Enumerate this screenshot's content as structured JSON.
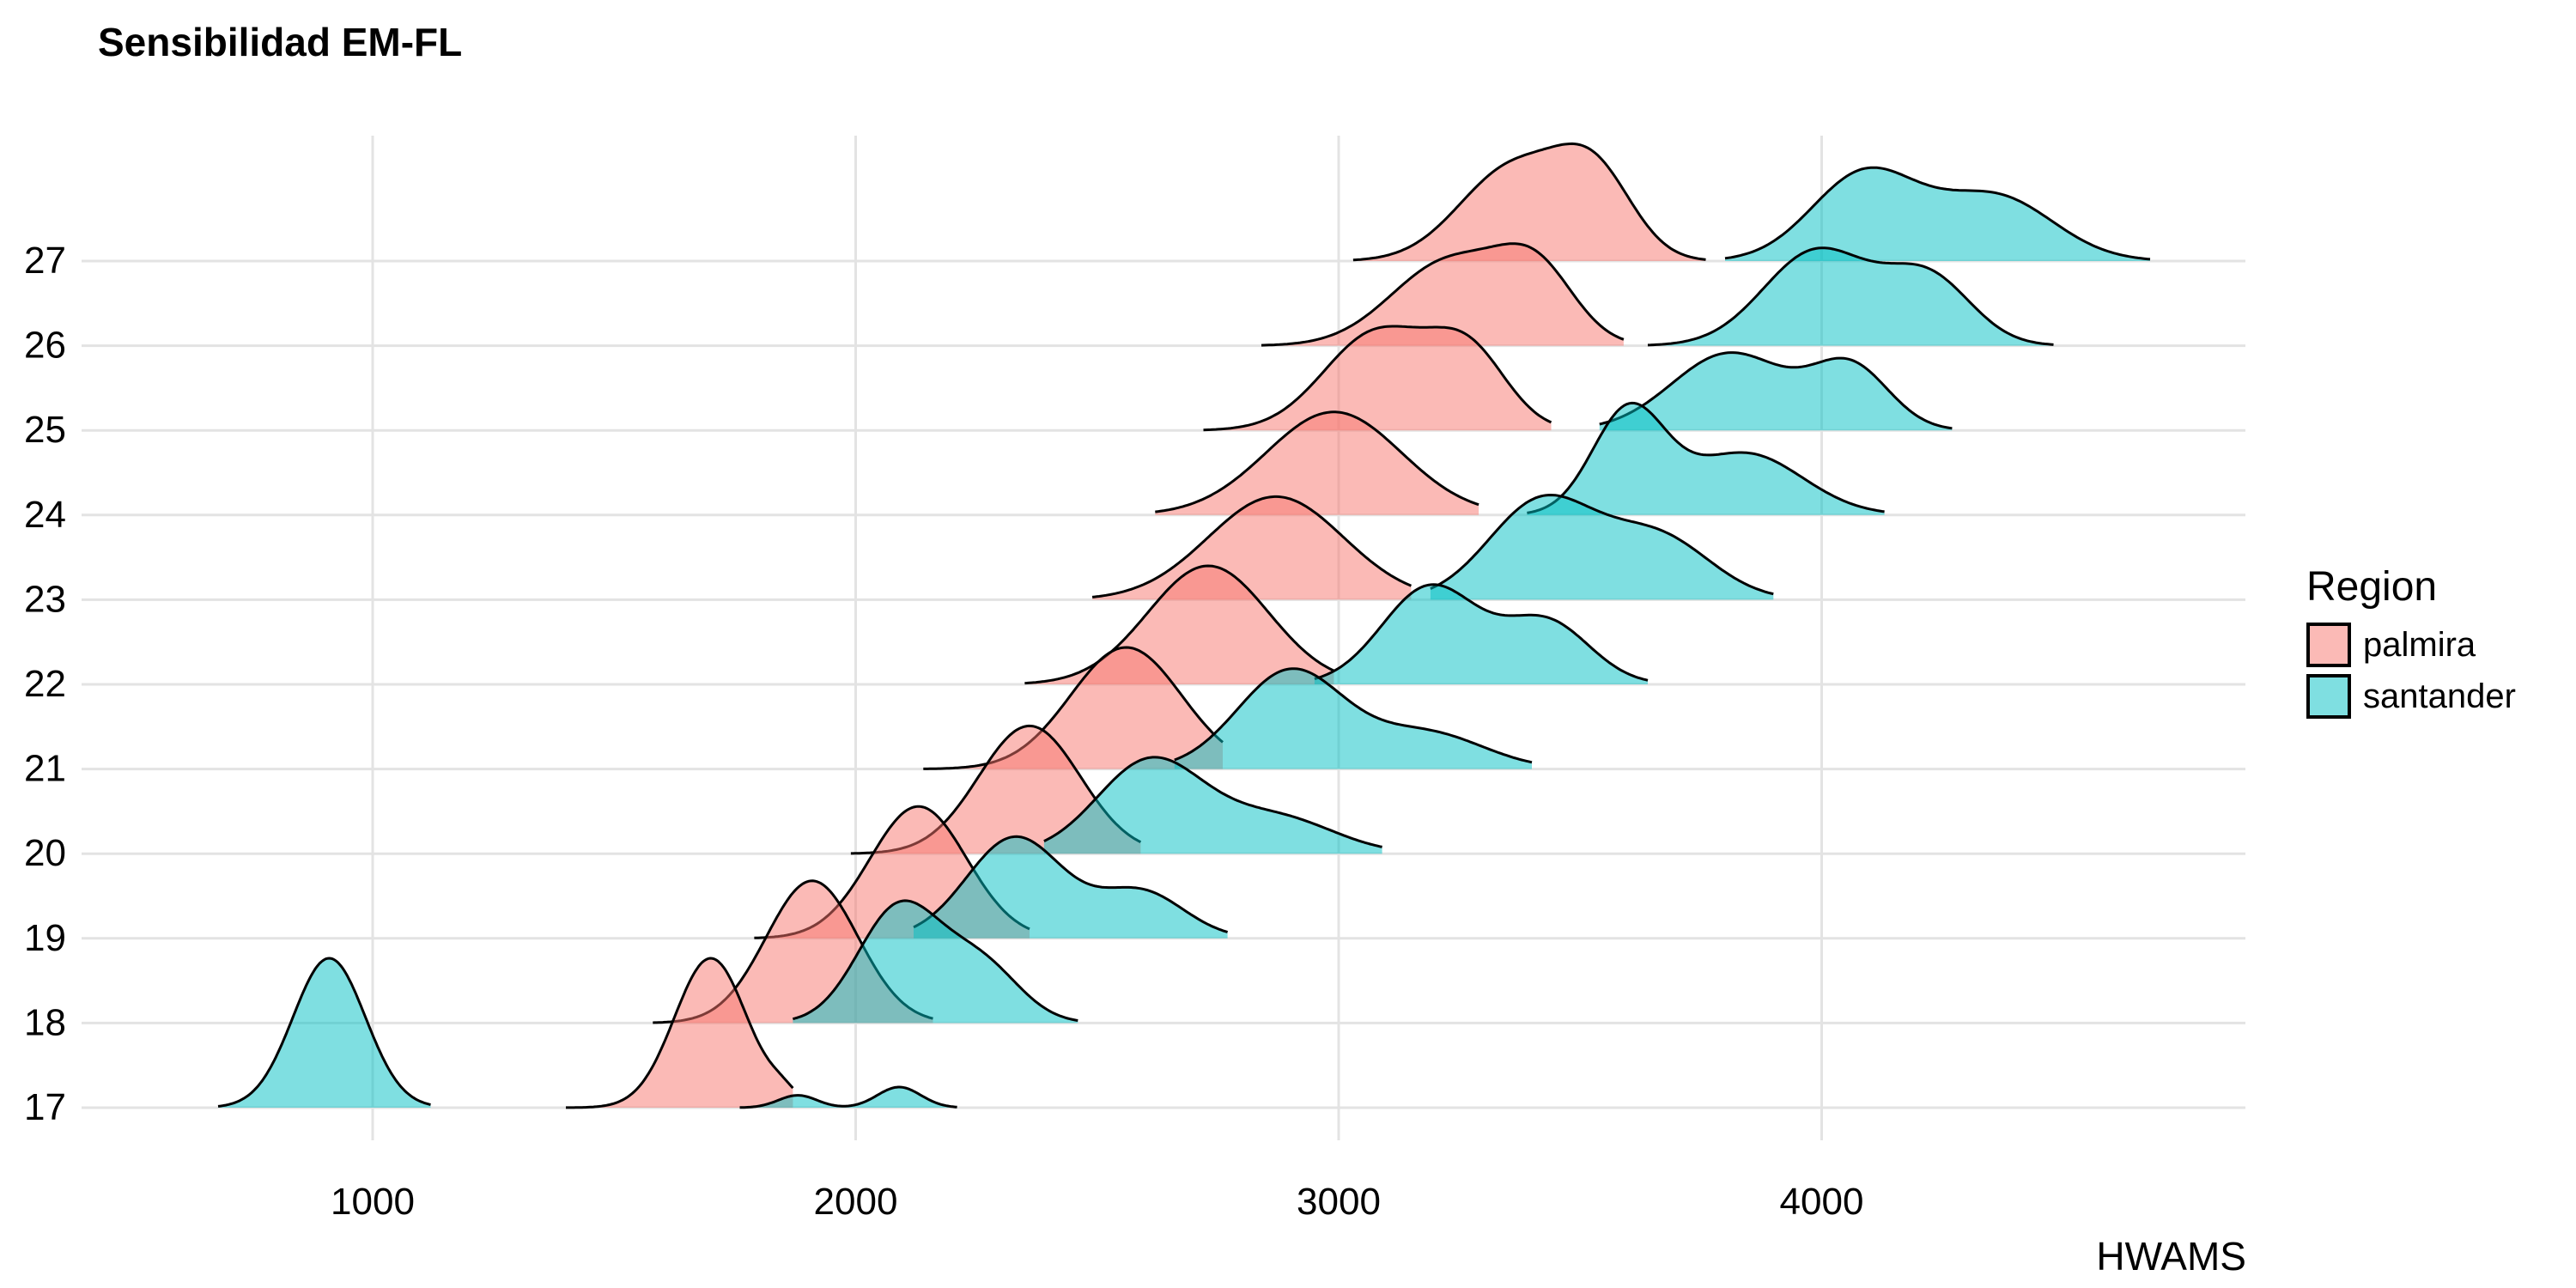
{
  "chart_data": {
    "type": "ridgeline",
    "title": "Sensibilidad EM-FL",
    "xlabel": "HWAMS",
    "ylabel": "",
    "xlim": [
      400,
      4900
    ],
    "x_ticks": [
      1000,
      2000,
      3000,
      4000
    ],
    "y_ticks": [
      "17",
      "18",
      "19",
      "20",
      "21",
      "22",
      "23",
      "24",
      "25",
      "26",
      "27"
    ],
    "grid": true,
    "legend": {
      "title": "Region",
      "position": "right"
    },
    "colors": {
      "palmira": "#F8766D",
      "santander": "#00BFC4"
    },
    "series": [
      {
        "name": "palmira",
        "ridges": [
          {
            "y": "17",
            "range": [
              1400,
              1870
            ],
            "peaks": [
              {
                "x": 1700,
                "h": 1.45,
                "s": 75
              },
              {
                "x": 1850,
                "h": 0.1,
                "s": 30
              }
            ]
          },
          {
            "y": "18",
            "range": [
              1580,
              2160
            ],
            "peaks": [
              {
                "x": 1910,
                "h": 1.38,
                "s": 95
              }
            ]
          },
          {
            "y": "19",
            "range": [
              1790,
              2360
            ],
            "peaks": [
              {
                "x": 2130,
                "h": 1.28,
                "s": 100
              }
            ]
          },
          {
            "y": "20",
            "range": [
              1990,
              2590
            ],
            "peaks": [
              {
                "x": 2360,
                "h": 1.24,
                "s": 105
              }
            ]
          },
          {
            "y": "21",
            "range": [
              2140,
              2760
            ],
            "peaks": [
              {
                "x": 2560,
                "h": 1.18,
                "s": 115
              }
            ]
          },
          {
            "y": "22",
            "range": [
              2350,
              2990
            ],
            "peaks": [
              {
                "x": 2730,
                "h": 1.15,
                "s": 125
              }
            ]
          },
          {
            "y": "23",
            "range": [
              2490,
              3150
            ],
            "peaks": [
              {
                "x": 2870,
                "h": 1.0,
                "s": 140
              }
            ]
          },
          {
            "y": "24",
            "range": [
              2620,
              3290
            ],
            "peaks": [
              {
                "x": 2990,
                "h": 1.0,
                "s": 140
              }
            ]
          },
          {
            "y": "25",
            "range": [
              2720,
              3440
            ],
            "peaks": [
              {
                "x": 3080,
                "h": 0.95,
                "s": 110
              },
              {
                "x": 3270,
                "h": 0.7,
                "s": 80
              }
            ]
          },
          {
            "y": "26",
            "range": [
              2840,
              3590
            ],
            "peaks": [
              {
                "x": 3230,
                "h": 0.82,
                "s": 120
              },
              {
                "x": 3410,
                "h": 0.65,
                "s": 80
              }
            ]
          },
          {
            "y": "27",
            "range": [
              3030,
              3760
            ],
            "peaks": [
              {
                "x": 3360,
                "h": 0.9,
                "s": 110
              },
              {
                "x": 3530,
                "h": 0.78,
                "s": 80
              }
            ]
          }
        ]
      },
      {
        "name": "santander",
        "ridges": [
          {
            "y": "17",
            "range": [
              680,
              1120
            ],
            "peaks": [
              {
                "x": 910,
                "h": 1.45,
                "s": 75
              }
            ]
          },
          {
            "y": "17b",
            "range": [
              1760,
              2210
            ],
            "peaks": [
              {
                "x": 1880,
                "h": 0.12,
                "s": 40
              },
              {
                "x": 2090,
                "h": 0.2,
                "s": 45
              }
            ]
          },
          {
            "y": "18",
            "range": [
              1870,
              2460
            ],
            "peaks": [
              {
                "x": 2090,
                "h": 1.12,
                "s": 85
              },
              {
                "x": 2260,
                "h": 0.55,
                "s": 80
              }
            ]
          },
          {
            "y": "19",
            "range": [
              2120,
              2770
            ],
            "peaks": [
              {
                "x": 2330,
                "h": 0.98,
                "s": 100
              },
              {
                "x": 2590,
                "h": 0.45,
                "s": 90
              }
            ]
          },
          {
            "y": "20",
            "range": [
              2390,
              3090
            ],
            "peaks": [
              {
                "x": 2610,
                "h": 0.9,
                "s": 110
              },
              {
                "x": 2870,
                "h": 0.35,
                "s": 120
              }
            ]
          },
          {
            "y": "21",
            "range": [
              2660,
              3400
            ],
            "peaks": [
              {
                "x": 2900,
                "h": 0.95,
                "s": 110
              },
              {
                "x": 3180,
                "h": 0.35,
                "s": 120
              }
            ]
          },
          {
            "y": "22",
            "range": [
              2950,
              3640
            ],
            "peaks": [
              {
                "x": 3190,
                "h": 0.95,
                "s": 100
              },
              {
                "x": 3430,
                "h": 0.6,
                "s": 90
              }
            ]
          },
          {
            "y": "23",
            "range": [
              3190,
              3900
            ],
            "peaks": [
              {
                "x": 3420,
                "h": 0.95,
                "s": 110
              },
              {
                "x": 3660,
                "h": 0.6,
                "s": 110
              }
            ]
          },
          {
            "y": "24",
            "range": [
              3390,
              4130
            ],
            "peaks": [
              {
                "x": 3600,
                "h": 1.0,
                "s": 75
              },
              {
                "x": 3840,
                "h": 0.6,
                "s": 120
              }
            ]
          },
          {
            "y": "25",
            "range": [
              3540,
              4270
            ],
            "peaks": [
              {
                "x": 3810,
                "h": 0.75,
                "s": 120
              },
              {
                "x": 4060,
                "h": 0.6,
                "s": 80
              }
            ]
          },
          {
            "y": "26",
            "range": [
              3640,
              4480
            ],
            "peaks": [
              {
                "x": 3990,
                "h": 0.92,
                "s": 110
              },
              {
                "x": 4220,
                "h": 0.65,
                "s": 90
              }
            ]
          },
          {
            "y": "27",
            "range": [
              3800,
              4680
            ],
            "peaks": [
              {
                "x": 4090,
                "h": 0.85,
                "s": 110
              },
              {
                "x": 4360,
                "h": 0.62,
                "s": 120
              }
            ]
          }
        ]
      }
    ]
  }
}
